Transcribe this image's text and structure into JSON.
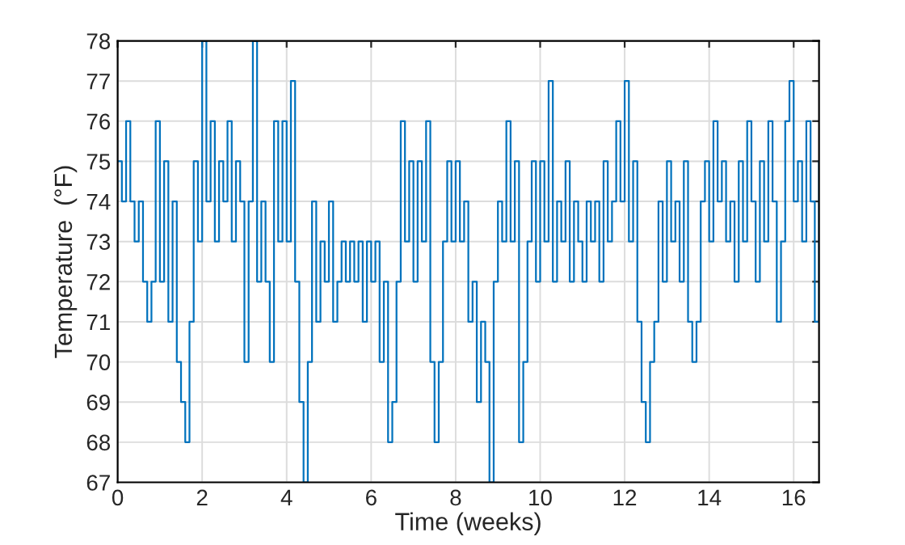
{
  "chart_data": {
    "type": "step",
    "xlabel": "Time (weeks)",
    "ylabel": "Temperature  (°F)",
    "xlim": [
      0,
      16.6
    ],
    "ylim": [
      67,
      78
    ],
    "xticks": [
      0,
      2,
      4,
      6,
      8,
      10,
      12,
      14,
      16
    ],
    "yticks": [
      67,
      68,
      69,
      70,
      71,
      72,
      73,
      74,
      75,
      76,
      77,
      78
    ],
    "grid": true,
    "x": [
      0.0,
      0.1,
      0.2,
      0.3,
      0.4,
      0.5,
      0.6,
      0.7,
      0.8,
      0.9,
      1.0,
      1.1,
      1.2,
      1.3,
      1.4,
      1.5,
      1.6,
      1.7,
      1.8,
      1.9,
      2.0,
      2.1,
      2.2,
      2.3,
      2.4,
      2.5,
      2.6,
      2.7,
      2.8,
      2.9,
      3.0,
      3.1,
      3.2,
      3.3,
      3.4,
      3.5,
      3.6,
      3.7,
      3.8,
      3.9,
      4.0,
      4.1,
      4.2,
      4.3,
      4.4,
      4.5,
      4.6,
      4.7,
      4.8,
      4.9,
      5.0,
      5.1,
      5.2,
      5.3,
      5.4,
      5.5,
      5.6,
      5.7,
      5.8,
      5.9,
      6.0,
      6.1,
      6.2,
      6.3,
      6.4,
      6.5,
      6.6,
      6.7,
      6.8,
      6.9,
      7.0,
      7.1,
      7.2,
      7.3,
      7.4,
      7.5,
      7.6,
      7.7,
      7.8,
      7.9,
      8.0,
      8.1,
      8.2,
      8.3,
      8.4,
      8.5,
      8.6,
      8.7,
      8.8,
      8.9,
      9.0,
      9.1,
      9.2,
      9.3,
      9.4,
      9.5,
      9.6,
      9.7,
      9.8,
      9.9,
      10.0,
      10.1,
      10.2,
      10.3,
      10.4,
      10.5,
      10.6,
      10.7,
      10.8,
      10.9,
      11.0,
      11.1,
      11.2,
      11.3,
      11.4,
      11.5,
      11.6,
      11.7,
      11.8,
      11.9,
      12.0,
      12.1,
      12.2,
      12.3,
      12.4,
      12.5,
      12.6,
      12.7,
      12.8,
      12.9,
      13.0,
      13.1,
      13.2,
      13.3,
      13.4,
      13.5,
      13.6,
      13.7,
      13.8,
      13.9,
      14.0,
      14.1,
      14.2,
      14.3,
      14.4,
      14.5,
      14.6,
      14.7,
      14.8,
      14.9,
      15.0,
      15.1,
      15.2,
      15.3,
      15.4,
      15.5,
      15.6,
      15.7,
      15.8,
      15.9,
      16.0,
      16.1,
      16.2,
      16.3,
      16.4,
      16.5,
      16.6
    ],
    "series": [
      {
        "color": "#0072bd",
        "values": [
          75,
          74,
          76,
          74,
          73,
          74,
          72,
          71,
          72,
          76,
          72,
          75,
          71,
          74,
          70,
          69,
          68,
          71,
          75,
          73,
          78,
          74,
          76,
          73,
          75,
          74,
          76,
          73,
          75,
          74,
          70,
          74,
          78,
          72,
          74,
          72,
          70,
          76,
          73,
          76,
          73,
          77,
          72,
          69,
          67,
          70,
          74,
          71,
          73,
          72,
          74,
          71,
          72,
          73,
          72,
          73,
          72,
          73,
          71,
          73,
          72,
          73,
          70,
          72,
          68,
          69,
          72,
          76,
          73,
          75,
          72,
          75,
          73,
          76,
          70,
          68,
          70,
          73,
          75,
          73,
          75,
          73,
          74,
          71,
          72,
          69,
          71,
          70,
          67,
          72,
          74,
          73,
          76,
          73,
          75,
          68,
          70,
          73,
          75,
          72,
          75,
          73,
          77,
          72,
          74,
          73,
          75,
          72,
          74,
          73,
          72,
          74,
          73,
          74,
          72,
          75,
          73,
          74,
          76,
          74,
          77,
          73,
          75,
          71,
          69,
          68,
          70,
          71,
          74,
          72,
          75,
          73,
          74,
          72,
          75,
          71,
          70,
          71,
          74,
          75,
          73,
          76,
          74,
          75,
          73,
          74,
          72,
          75,
          73,
          76,
          74,
          72,
          75,
          73,
          76,
          74,
          71,
          73,
          76,
          77,
          74,
          75,
          73,
          76,
          74,
          71,
          75
        ]
      }
    ]
  }
}
